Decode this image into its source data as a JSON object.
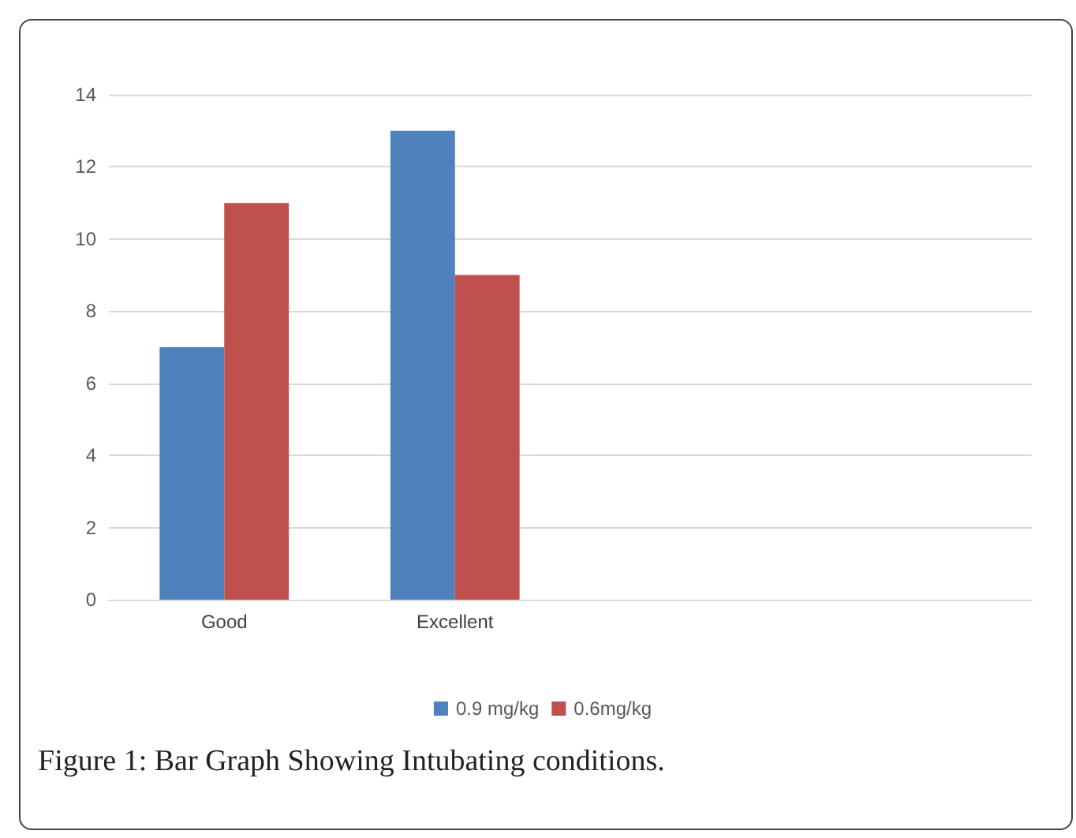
{
  "chart_data": {
    "type": "bar",
    "categories": [
      "Good",
      "Excellent",
      null,
      null
    ],
    "series": [
      {
        "name": "0.9 mg/kg",
        "color": "#4f81bd",
        "values": [
          7,
          13,
          null,
          null
        ]
      },
      {
        "name": "0.6mg/kg",
        "color": "#c0504d",
        "values": [
          11,
          9,
          null,
          null
        ]
      }
    ],
    "ylim": [
      0,
      14
    ],
    "yticks": [
      0,
      2,
      4,
      6,
      8,
      10,
      12,
      14
    ],
    "grid": "y",
    "legend": "bottom",
    "annotations": [
      "Figure 1: Bar Graph Showing Intubating conditions."
    ]
  }
}
